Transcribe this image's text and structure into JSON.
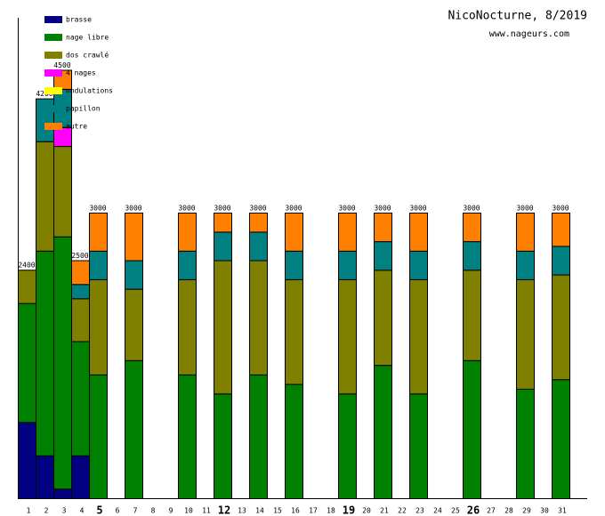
{
  "chart_data": {
    "type": "stacked_bar",
    "title": "NicoNocturne, 8/2019",
    "subtitle": "www.nageurs.com",
    "categories": [
      "1",
      "2",
      "3",
      "4",
      "5",
      "6",
      "7",
      "8",
      "9",
      "10",
      "11",
      "12",
      "13",
      "14",
      "15",
      "16",
      "17",
      "18",
      "19",
      "20",
      "21",
      "22",
      "23",
      "24",
      "25",
      "26",
      "27",
      "28",
      "29",
      "30",
      "31"
    ],
    "emphasized_categories": [
      4,
      11,
      18,
      25
    ],
    "ylim": [
      0,
      5000
    ],
    "series": [
      {
        "name": "brasse",
        "color": "#000080",
        "values": [
          800,
          450,
          100,
          450,
          null,
          null,
          null,
          null,
          null,
          null,
          null,
          null,
          null,
          null,
          null,
          null,
          null,
          null,
          null,
          null,
          null,
          null,
          null,
          null,
          null,
          null,
          null,
          null,
          null,
          null,
          null
        ]
      },
      {
        "name": "nage libre",
        "color": "#008000",
        "values": [
          1250,
          2150,
          2650,
          1200,
          1300,
          null,
          1450,
          null,
          null,
          1300,
          null,
          1100,
          null,
          1300,
          null,
          1200,
          null,
          null,
          1100,
          null,
          1400,
          null,
          1100,
          null,
          null,
          1450,
          null,
          null,
          1150,
          null,
          1250
        ]
      },
      {
        "name": "dos crawlé",
        "color": "#808000",
        "values": [
          350,
          1150,
          950,
          450,
          1000,
          null,
          750,
          null,
          null,
          1000,
          null,
          1400,
          null,
          1200,
          null,
          1100,
          null,
          null,
          1200,
          null,
          1000,
          null,
          1200,
          null,
          null,
          950,
          null,
          null,
          1150,
          null,
          1100
        ]
      },
      {
        "name": "4 nages",
        "color": "#ff00ff",
        "values": [
          null,
          null,
          200,
          null,
          null,
          null,
          null,
          null,
          null,
          null,
          null,
          null,
          null,
          null,
          null,
          null,
          null,
          null,
          null,
          null,
          null,
          null,
          null,
          null,
          null,
          null,
          null,
          null,
          null,
          null,
          null
        ]
      },
      {
        "name": "ondulations",
        "color": "#ffff00",
        "values": [
          null,
          null,
          null,
          null,
          null,
          null,
          null,
          null,
          null,
          null,
          null,
          null,
          null,
          null,
          null,
          null,
          null,
          null,
          null,
          null,
          null,
          null,
          null,
          null,
          null,
          null,
          null,
          null,
          null,
          null,
          null
        ]
      },
      {
        "name": "papillon",
        "color": "#008080",
        "values": [
          null,
          450,
          400,
          150,
          300,
          null,
          300,
          null,
          null,
          300,
          null,
          300,
          null,
          300,
          null,
          300,
          null,
          null,
          300,
          null,
          300,
          null,
          300,
          null,
          null,
          300,
          null,
          null,
          300,
          null,
          300
        ]
      },
      {
        "name": "autre",
        "color": "#ff8000",
        "values": [
          null,
          null,
          200,
          250,
          400,
          null,
          500,
          null,
          null,
          400,
          null,
          200,
          null,
          200,
          null,
          400,
          null,
          null,
          400,
          null,
          300,
          null,
          400,
          null,
          null,
          300,
          null,
          null,
          400,
          null,
          350
        ]
      }
    ],
    "totals": [
      2400,
      4200,
      4500,
      2500,
      3000,
      null,
      3000,
      null,
      null,
      3000,
      null,
      3000,
      null,
      3000,
      null,
      3000,
      null,
      null,
      3000,
      null,
      3000,
      null,
      3000,
      null,
      null,
      3000,
      null,
      null,
      3000,
      null,
      3000
    ]
  }
}
